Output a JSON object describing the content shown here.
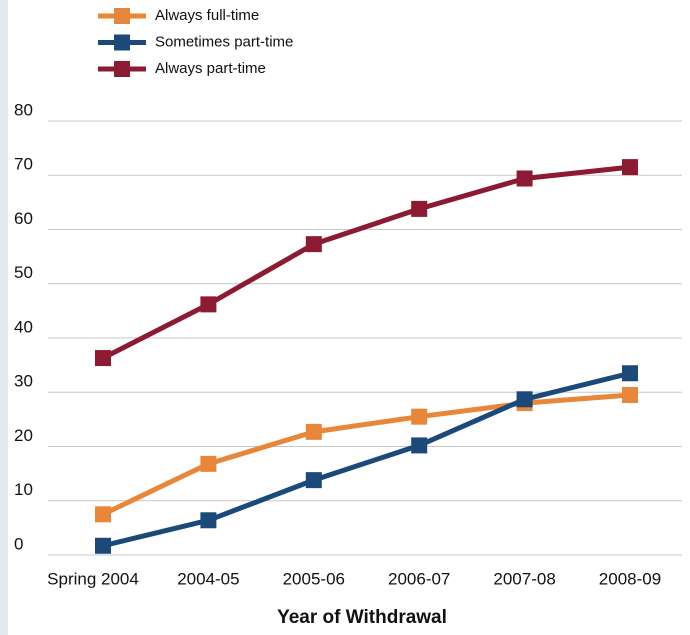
{
  "chart_data": {
    "type": "line",
    "x_label": "Year of Withdrawal",
    "categories": [
      "Spring 2004",
      "2004-05",
      "2005-06",
      "2006-07",
      "2007-08",
      "2008-09"
    ],
    "series": [
      {
        "name": "Always full-time",
        "color": "#e8873a",
        "values": [
          7.5,
          16.8,
          22.7,
          25.5,
          28.0,
          29.5
        ]
      },
      {
        "name": "Sometimes part-time",
        "color": "#1b4a7a",
        "values": [
          1.7,
          6.4,
          13.8,
          20.2,
          28.7,
          33.5
        ]
      },
      {
        "name": "Always part-time",
        "color": "#8b1a32",
        "values": [
          36.3,
          46.2,
          57.3,
          63.8,
          69.4,
          71.5
        ]
      }
    ],
    "ylim": [
      0,
      80
    ],
    "yticks": [
      0,
      10,
      20,
      30,
      40,
      50,
      60,
      70,
      80
    ],
    "grid": true
  }
}
